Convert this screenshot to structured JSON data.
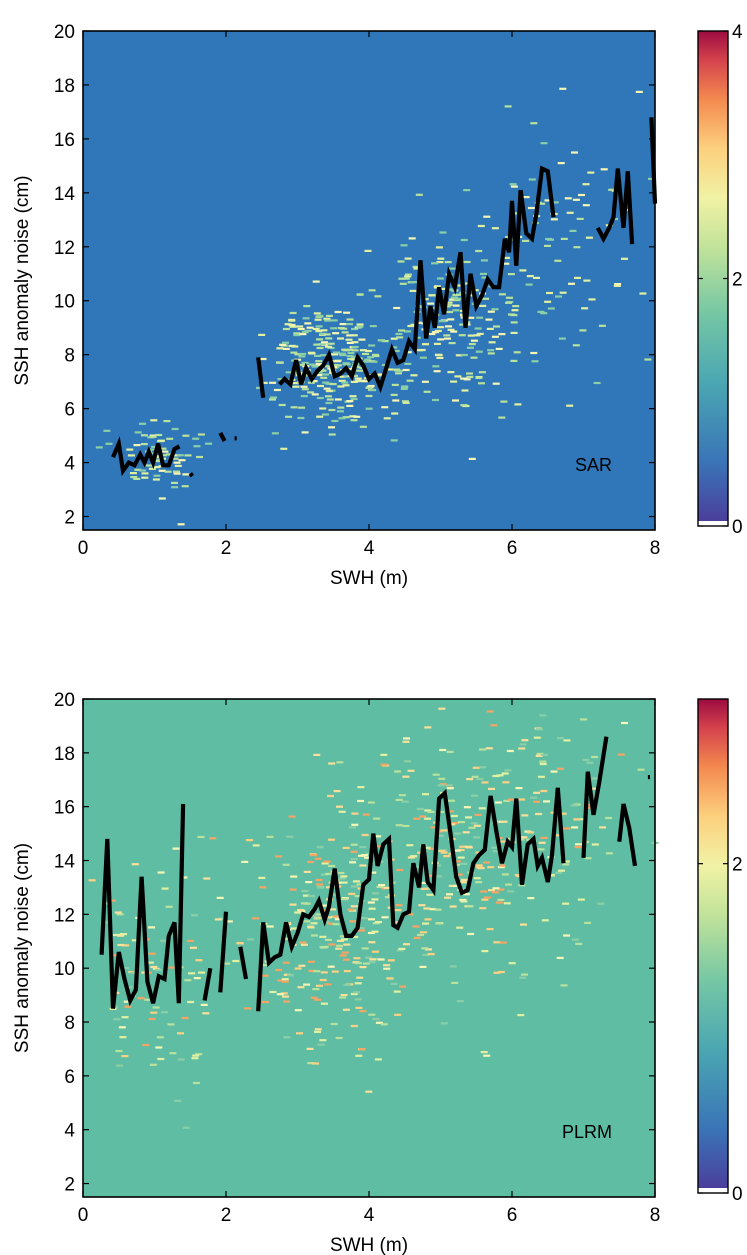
{
  "chart_data": [
    {
      "type": "heatmap",
      "panel_label": "SAR",
      "xlabel": "SWH (m)",
      "ylabel": "SSH anomaly noise (cm)",
      "xlim": [
        0,
        8
      ],
      "ylim": [
        1.5,
        20
      ],
      "xticks": [
        "0",
        "2",
        "4",
        "6",
        "8"
      ],
      "yticks": [
        "2",
        "4",
        "6",
        "8",
        "10",
        "12",
        "14",
        "16",
        "18",
        "20"
      ],
      "background_color": "#2f77b9",
      "colorbar": {
        "ticks": [
          "0",
          "2",
          "4"
        ],
        "range": [
          0,
          4
        ]
      },
      "scatter_clusters": [
        {
          "cx": 1.0,
          "cy": 4.2,
          "sx": 0.25,
          "sy": 0.7,
          "n": 70
        },
        {
          "cx": 3.4,
          "cy": 7.6,
          "sx": 0.45,
          "sy": 1.1,
          "n": 260
        },
        {
          "cx": 5.0,
          "cy": 9.5,
          "sx": 0.6,
          "sy": 1.6,
          "n": 200
        },
        {
          "cx": 6.6,
          "cy": 12.5,
          "sx": 0.6,
          "sy": 2.2,
          "n": 80
        }
      ],
      "series": [
        {
          "segments": [
            [
              [
                0.42,
                4.2
              ],
              [
                0.5,
                4.7
              ],
              [
                0.56,
                3.7
              ],
              [
                0.64,
                4.0
              ],
              [
                0.72,
                3.9
              ],
              [
                0.8,
                4.3
              ],
              [
                0.86,
                4.0
              ],
              [
                0.92,
                4.4
              ],
              [
                0.98,
                4.0
              ],
              [
                1.05,
                4.7
              ],
              [
                1.12,
                3.9
              ],
              [
                1.2,
                3.9
              ],
              [
                1.28,
                4.5
              ],
              [
                1.35,
                4.6
              ]
            ],
            [
              [
                1.5,
                3.6
              ],
              [
                1.53,
                3.5
              ]
            ],
            [
              [
                1.92,
                5.1
              ],
              [
                1.98,
                4.8
              ]
            ],
            [
              [
                2.12,
                4.9
              ],
              [
                2.15,
                4.9
              ]
            ],
            [
              [
                2.45,
                7.9
              ],
              [
                2.52,
                6.4
              ]
            ],
            [
              [
                2.75,
                6.9
              ],
              [
                2.82,
                7.1
              ],
              [
                2.9,
                6.9
              ],
              [
                2.98,
                7.8
              ],
              [
                3.05,
                6.9
              ],
              [
                3.12,
                7.5
              ],
              [
                3.2,
                7.1
              ],
              [
                3.28,
                7.4
              ],
              [
                3.36,
                7.6
              ],
              [
                3.44,
                8.0
              ],
              [
                3.52,
                7.2
              ],
              [
                3.6,
                7.3
              ],
              [
                3.68,
                7.5
              ],
              [
                3.76,
                7.2
              ],
              [
                3.84,
                7.9
              ],
              [
                3.92,
                7.6
              ],
              [
                4.0,
                7.1
              ],
              [
                4.08,
                7.3
              ],
              [
                4.16,
                6.8
              ],
              [
                4.24,
                7.5
              ],
              [
                4.32,
                8.2
              ],
              [
                4.4,
                7.7
              ],
              [
                4.48,
                7.8
              ],
              [
                4.56,
                8.5
              ],
              [
                4.64,
                8.2
              ],
              [
                4.72,
                11.5
              ],
              [
                4.8,
                8.6
              ],
              [
                4.86,
                9.8
              ],
              [
                4.92,
                9.0
              ],
              [
                4.98,
                10.5
              ],
              [
                5.05,
                9.5
              ],
              [
                5.12,
                11.0
              ],
              [
                5.2,
                10.5
              ],
              [
                5.28,
                11.8
              ],
              [
                5.35,
                9.0
              ],
              [
                5.42,
                11.0
              ],
              [
                5.5,
                9.8
              ],
              [
                5.58,
                10.2
              ],
              [
                5.66,
                10.8
              ],
              [
                5.74,
                10.5
              ],
              [
                5.82,
                10.5
              ],
              [
                5.9,
                12.3
              ],
              [
                5.96,
                11.8
              ],
              [
                6.0,
                13.7
              ],
              [
                6.06,
                11.3
              ],
              [
                6.12,
                14.1
              ],
              [
                6.2,
                12.5
              ],
              [
                6.28,
                12.3
              ],
              [
                6.34,
                13.2
              ],
              [
                6.42,
                14.9
              ],
              [
                6.5,
                14.8
              ],
              [
                6.58,
                13.1
              ]
            ],
            [
              [
                7.2,
                12.7
              ],
              [
                7.28,
                12.3
              ],
              [
                7.36,
                12.7
              ],
              [
                7.42,
                13.1
              ],
              [
                7.48,
                14.9
              ],
              [
                7.56,
                12.7
              ],
              [
                7.62,
                14.8
              ],
              [
                7.68,
                12.1
              ]
            ],
            [
              [
                7.95,
                16.8
              ],
              [
                8.0,
                13.6
              ]
            ]
          ]
        }
      ]
    },
    {
      "type": "heatmap",
      "panel_label": "PLRM",
      "xlabel": "SWH (m)",
      "ylabel": "SSH anomaly noise (cm)",
      "xlim": [
        0,
        8
      ],
      "ylim": [
        1.5,
        20
      ],
      "xticks": [
        "0",
        "2",
        "4",
        "6",
        "8"
      ],
      "yticks": [
        "2",
        "4",
        "6",
        "8",
        "10",
        "12",
        "14",
        "16",
        "18",
        "20"
      ],
      "background_color": "#5fbda4",
      "colorbar": {
        "ticks": [
          "0",
          "2"
        ],
        "range": [
          0,
          3
        ]
      },
      "scatter_clusters": [
        {
          "cx": 1.0,
          "cy": 10.0,
          "sx": 0.45,
          "sy": 2.2,
          "n": 90
        },
        {
          "cx": 3.4,
          "cy": 11.5,
          "sx": 0.6,
          "sy": 2.5,
          "n": 260
        },
        {
          "cx": 5.2,
          "cy": 14.5,
          "sx": 0.7,
          "sy": 2.6,
          "n": 220
        },
        {
          "cx": 6.5,
          "cy": 15.5,
          "sx": 0.6,
          "sy": 2.5,
          "n": 80
        }
      ],
      "series": [
        {
          "segments": [
            [
              [
                0.26,
                10.5
              ],
              [
                0.34,
                14.8
              ],
              [
                0.42,
                8.5
              ],
              [
                0.5,
                10.6
              ],
              [
                0.58,
                9.6
              ],
              [
                0.66,
                8.8
              ],
              [
                0.74,
                9.2
              ],
              [
                0.82,
                13.4
              ],
              [
                0.9,
                9.5
              ],
              [
                0.98,
                8.7
              ],
              [
                1.06,
                9.7
              ],
              [
                1.14,
                9.6
              ],
              [
                1.2,
                11.2
              ],
              [
                1.28,
                11.7
              ],
              [
                1.34,
                8.7
              ],
              [
                1.4,
                16.1
              ]
            ],
            [
              [
                1.7,
                8.8
              ],
              [
                1.78,
                10.0
              ]
            ],
            [
              [
                1.92,
                9.1
              ],
              [
                2.0,
                12.1
              ]
            ],
            [
              [
                2.2,
                10.8
              ],
              [
                2.28,
                9.6
              ]
            ],
            [
              [
                2.45,
                8.4
              ],
              [
                2.52,
                11.7
              ],
              [
                2.6,
                10.2
              ],
              [
                2.68,
                10.4
              ],
              [
                2.76,
                10.5
              ],
              [
                2.84,
                11.7
              ],
              [
                2.92,
                10.8
              ],
              [
                3.0,
                11.3
              ],
              [
                3.08,
                12.0
              ],
              [
                3.16,
                11.9
              ],
              [
                3.24,
                12.2
              ],
              [
                3.3,
                12.5
              ],
              [
                3.38,
                11.8
              ],
              [
                3.44,
                12.3
              ],
              [
                3.52,
                13.7
              ],
              [
                3.6,
                12.0
              ],
              [
                3.68,
                11.2
              ],
              [
                3.76,
                11.2
              ],
              [
                3.84,
                11.5
              ],
              [
                3.92,
                13.1
              ],
              [
                4.0,
                13.3
              ],
              [
                4.06,
                15.0
              ],
              [
                4.12,
                13.8
              ],
              [
                4.2,
                14.6
              ],
              [
                4.28,
                14.8
              ],
              [
                4.34,
                11.6
              ],
              [
                4.4,
                11.5
              ],
              [
                4.48,
                12.0
              ],
              [
                4.56,
                12.1
              ],
              [
                4.62,
                13.9
              ],
              [
                4.7,
                13.0
              ],
              [
                4.76,
                14.6
              ],
              [
                4.82,
                13.2
              ],
              [
                4.9,
                12.9
              ],
              [
                4.98,
                16.3
              ],
              [
                5.06,
                16.5
              ],
              [
                5.14,
                15.0
              ],
              [
                5.22,
                13.4
              ],
              [
                5.3,
                12.8
              ],
              [
                5.38,
                12.9
              ],
              [
                5.46,
                13.9
              ],
              [
                5.54,
                14.2
              ],
              [
                5.62,
                14.4
              ],
              [
                5.7,
                16.4
              ],
              [
                5.78,
                15.1
              ],
              [
                5.86,
                13.9
              ],
              [
                5.94,
                14.7
              ],
              [
                6.0,
                14.5
              ],
              [
                6.06,
                16.3
              ],
              [
                6.14,
                13.1
              ],
              [
                6.22,
                14.6
              ],
              [
                6.3,
                14.8
              ],
              [
                6.36,
                13.8
              ],
              [
                6.42,
                14.1
              ],
              [
                6.5,
                13.2
              ],
              [
                6.56,
                14.2
              ],
              [
                6.64,
                16.7
              ],
              [
                6.72,
                13.9
              ]
            ],
            [
              [
                7.0,
                14.1
              ],
              [
                7.06,
                17.3
              ],
              [
                7.14,
                15.7
              ],
              [
                7.22,
                16.9
              ],
              [
                7.32,
                18.6
              ]
            ],
            [
              [
                7.5,
                14.7
              ],
              [
                7.56,
                16.1
              ],
              [
                7.64,
                15.2
              ],
              [
                7.72,
                13.8
              ]
            ],
            [
              [
                7.9,
                17.1
              ],
              [
                7.93,
                17.1
              ]
            ]
          ]
        }
      ]
    }
  ]
}
